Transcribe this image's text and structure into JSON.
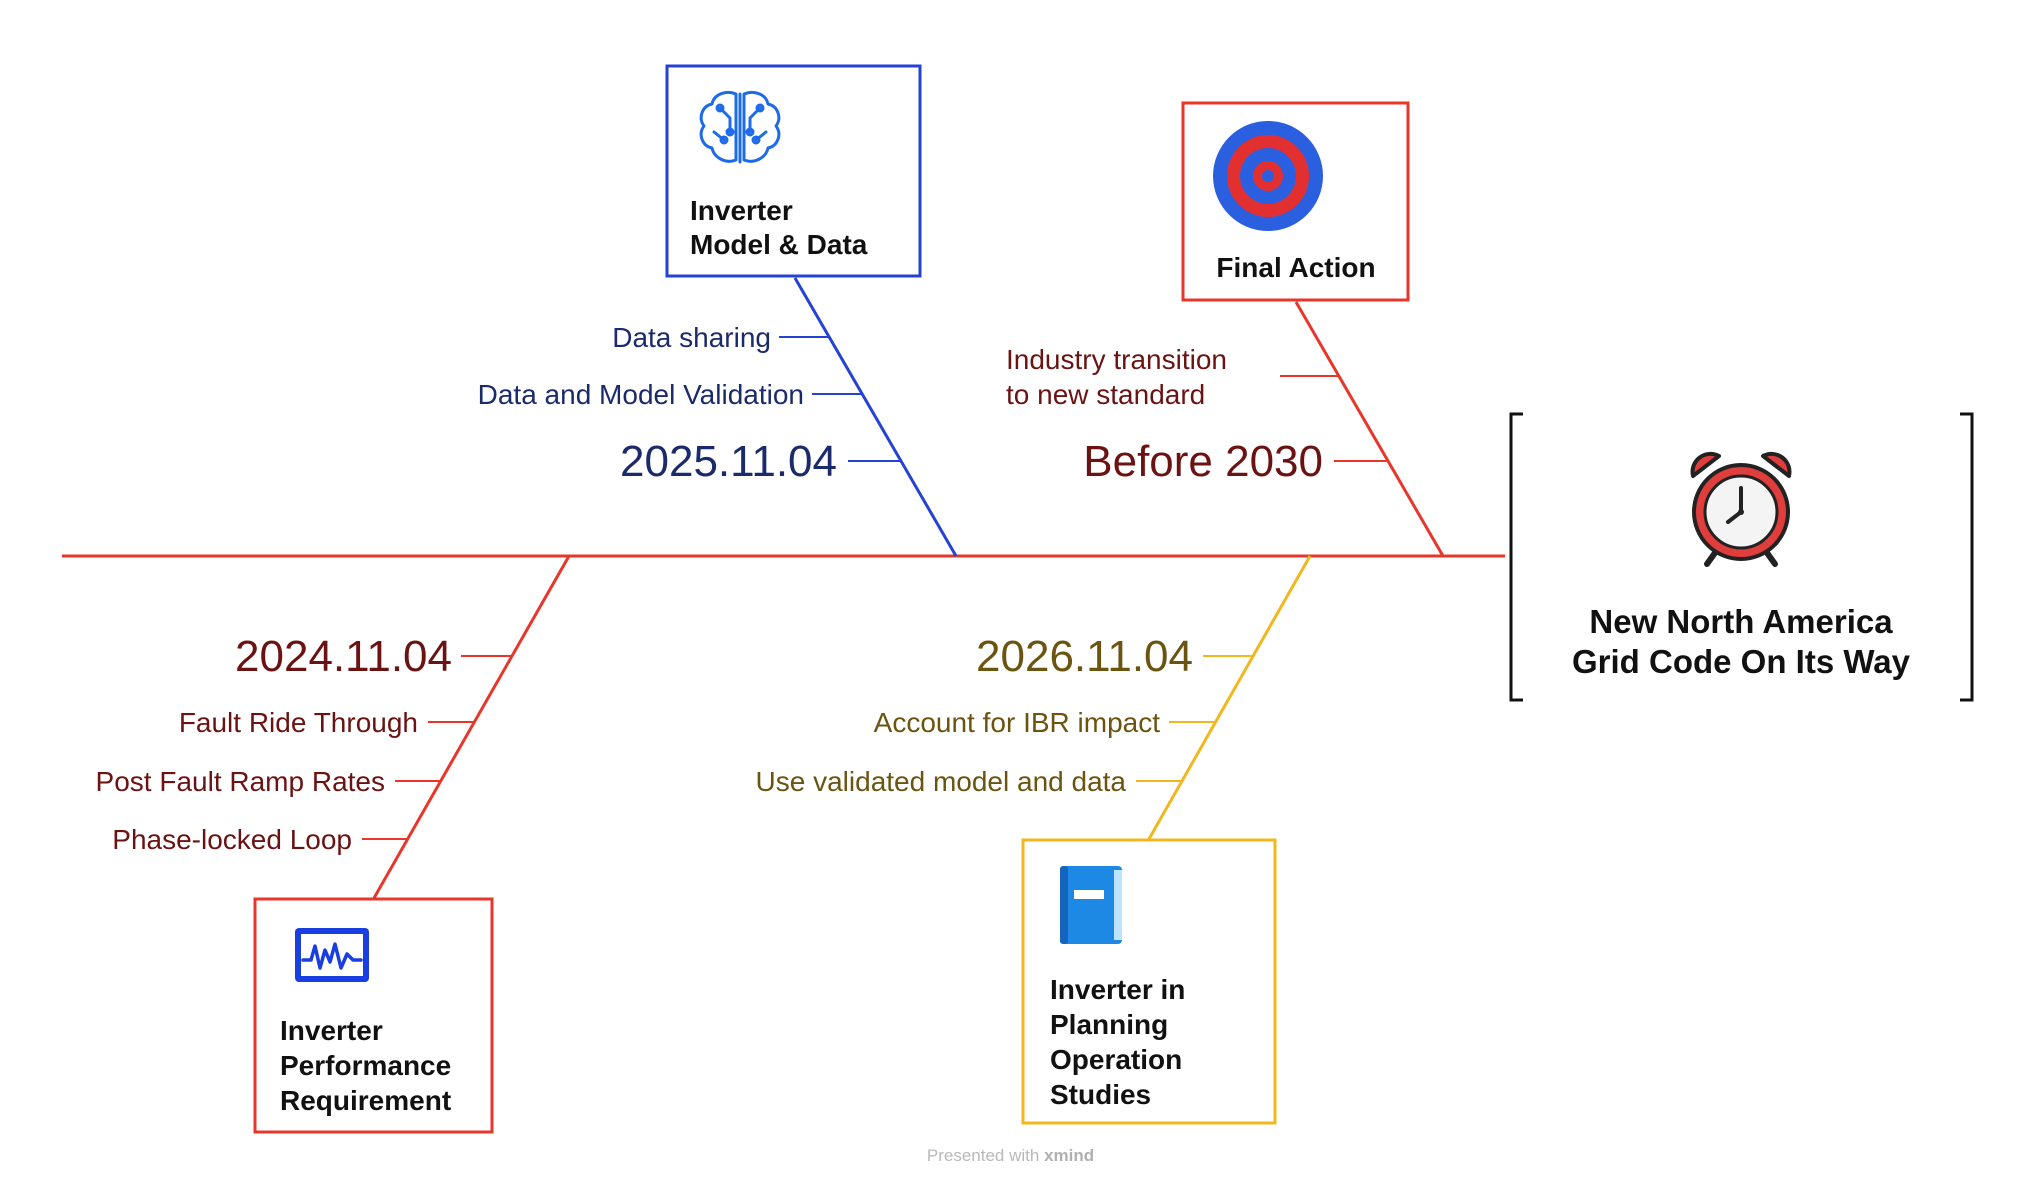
{
  "colors": {
    "spine": "#e8362a",
    "blue": "#2442d4",
    "blue_text": "#1b2a6b",
    "red": "#e8362a",
    "red_text": "#6b1313",
    "yellow": "#f0b81e",
    "yellow_text": "#6b5410"
  },
  "head": {
    "title_line1": "New North America",
    "title_line2": "Grid Code On Its Way",
    "icon": "alarm-clock-icon"
  },
  "branches": {
    "model_data": {
      "title_line1": "Inverter",
      "title_line2": "Model & Data",
      "icon": "ai-brain-icon",
      "date": "2025.11.04",
      "items": [
        "Data sharing",
        "Data and Model Validation"
      ]
    },
    "final_action": {
      "title": "Final Action",
      "icon": "target-icon",
      "date": "Before 2030",
      "item_line1": "Industry transition",
      "item_line2": "to new standard"
    },
    "performance": {
      "title_line1": "Inverter",
      "title_line2": "Performance",
      "title_line3": "Requirement",
      "icon": "waveform-monitor-icon",
      "date": "2024.11.04",
      "items": [
        "Fault Ride Through",
        "Post Fault Ramp Rates",
        "Phase-locked Loop"
      ]
    },
    "planning": {
      "title_line1": "Inverter in",
      "title_line2": "Planning",
      "title_line3": "Operation",
      "title_line4": "Studies",
      "icon": "book-icon",
      "date": "2026.11.04",
      "items": [
        "Account for IBR impact",
        "Use validated model and data"
      ]
    }
  },
  "watermark": {
    "prefix": "Presented with",
    "brand": "xmind"
  }
}
